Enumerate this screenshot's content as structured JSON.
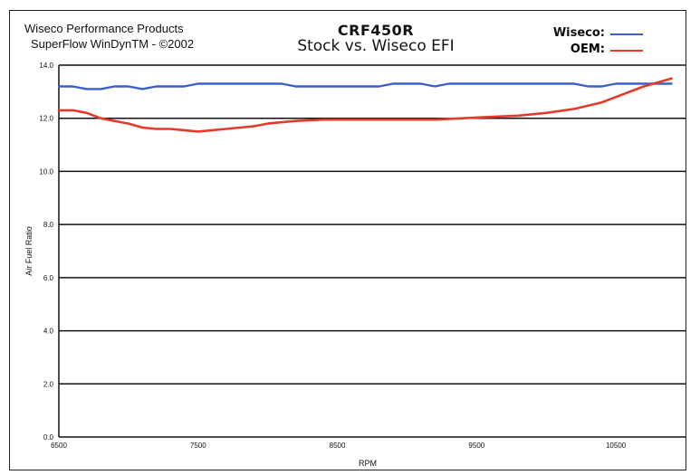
{
  "header": {
    "left_line1": "Wiseco Performance Products",
    "left_line2": "SuperFlow WinDynTM - ©2002",
    "title": "CRF450R",
    "subtitle": "Stock vs. Wiseco EFI"
  },
  "legend": [
    {
      "label": "Wiseco:",
      "color": "#3a5fcd"
    },
    {
      "label": "OEM:",
      "color": "#e53a2a"
    }
  ],
  "chart_data": {
    "type": "line",
    "title": "CRF450R",
    "subtitle": "Stock vs. Wiseco EFI",
    "xlabel": "RPM",
    "ylabel": "Air Fuel Ratio",
    "xlim": [
      6500,
      11000
    ],
    "ylim": [
      0,
      14
    ],
    "x_ticks": [
      6500,
      7500,
      8500,
      9500,
      10500
    ],
    "x_tick_labels": [
      "6500",
      "7500",
      "8500",
      "9500",
      "10500"
    ],
    "y_ticks": [
      0,
      2,
      4,
      6,
      8,
      10,
      12,
      14
    ],
    "y_tick_labels": [
      "0.0",
      "2.0",
      "4.0",
      "6.0",
      "8.0",
      "10.0",
      "12.0",
      "14.0"
    ],
    "grid": true,
    "legend_position": "top-right",
    "series": [
      {
        "name": "Wiseco",
        "color": "#3a5fcd",
        "x": [
          6500,
          6600,
          6700,
          6800,
          6900,
          7000,
          7100,
          7200,
          7300,
          7400,
          7500,
          7700,
          7900,
          8100,
          8200,
          8400,
          8600,
          8800,
          8900,
          9000,
          9100,
          9200,
          9300,
          9500,
          9700,
          9900,
          10100,
          10200,
          10300,
          10400,
          10500,
          10700,
          10900
        ],
        "values": [
          13.2,
          13.2,
          13.1,
          13.1,
          13.2,
          13.2,
          13.1,
          13.2,
          13.2,
          13.2,
          13.3,
          13.3,
          13.3,
          13.3,
          13.2,
          13.2,
          13.2,
          13.2,
          13.3,
          13.3,
          13.3,
          13.2,
          13.3,
          13.3,
          13.3,
          13.3,
          13.3,
          13.3,
          13.2,
          13.2,
          13.3,
          13.3,
          13.3
        ]
      },
      {
        "name": "OEM",
        "color": "#e53a2a",
        "x": [
          6500,
          6600,
          6700,
          6800,
          6900,
          7000,
          7100,
          7200,
          7300,
          7400,
          7500,
          7600,
          7700,
          7800,
          7900,
          8000,
          8100,
          8200,
          8400,
          8600,
          8800,
          9000,
          9200,
          9400,
          9600,
          9800,
          10000,
          10200,
          10400,
          10500,
          10600,
          10700,
          10800,
          10900
        ],
        "values": [
          12.3,
          12.3,
          12.2,
          12.0,
          11.9,
          11.8,
          11.65,
          11.6,
          11.6,
          11.55,
          11.5,
          11.55,
          11.6,
          11.65,
          11.7,
          11.8,
          11.85,
          11.9,
          11.95,
          11.95,
          11.95,
          11.95,
          11.95,
          12.0,
          12.05,
          12.1,
          12.2,
          12.35,
          12.6,
          12.8,
          13.0,
          13.2,
          13.35,
          13.5
        ]
      }
    ]
  }
}
